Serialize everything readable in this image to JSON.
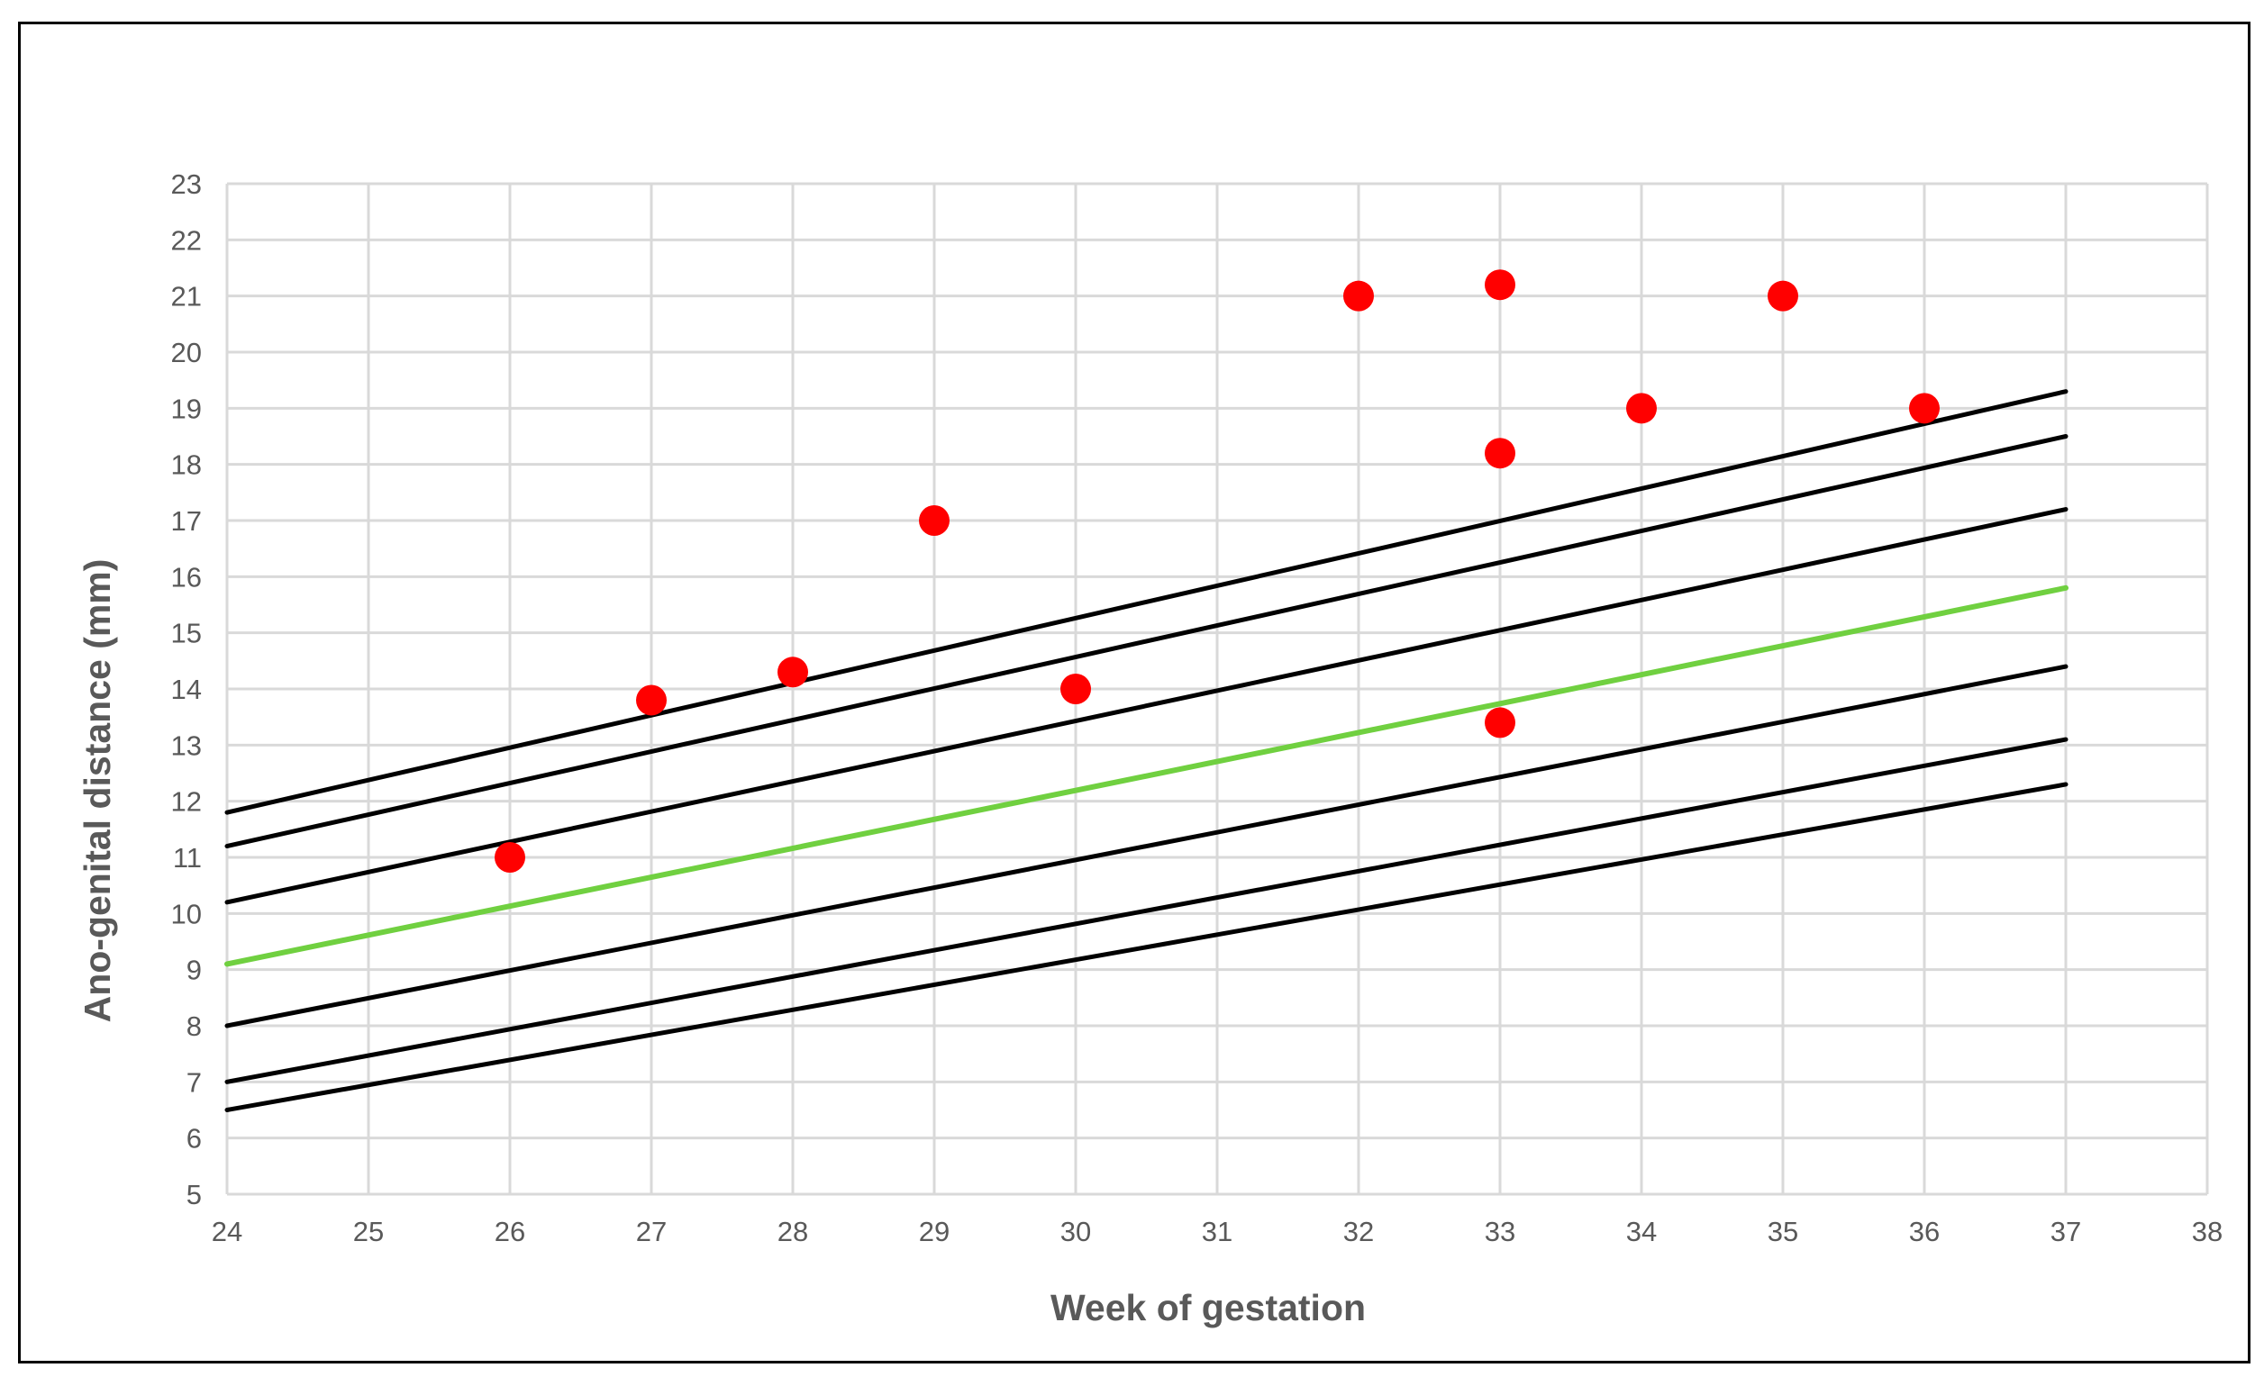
{
  "chart_data": {
    "type": "scatter",
    "title": "",
    "xlabel": "Week of gestation",
    "ylabel": "Ano-genital distance (mm)",
    "xlim": [
      24,
      38
    ],
    "ylim": [
      5,
      23
    ],
    "xticks": [
      24,
      25,
      26,
      27,
      28,
      29,
      30,
      31,
      32,
      33,
      34,
      35,
      36,
      37,
      38
    ],
    "yticks": [
      5,
      6,
      7,
      8,
      9,
      10,
      11,
      12,
      13,
      14,
      15,
      16,
      17,
      18,
      19,
      20,
      21,
      22,
      23
    ],
    "grid": true,
    "legend": "none",
    "colors": {
      "points": "#ff0000",
      "median": "#70d040",
      "percentiles": "#000000",
      "grid": "#d9d9d9",
      "text": "#595959"
    },
    "points": [
      {
        "x": 26,
        "y": 11.0
      },
      {
        "x": 27,
        "y": 13.8
      },
      {
        "x": 28,
        "y": 14.3
      },
      {
        "x": 29,
        "y": 17.0
      },
      {
        "x": 30,
        "y": 14.0
      },
      {
        "x": 32,
        "y": 21.0
      },
      {
        "x": 33,
        "y": 21.2
      },
      {
        "x": 33,
        "y": 18.2
      },
      {
        "x": 33,
        "y": 13.4
      },
      {
        "x": 34,
        "y": 19.0
      },
      {
        "x": 35,
        "y": 21.0
      },
      {
        "x": 36,
        "y": 19.0
      }
    ],
    "lines": [
      {
        "role": "percentile",
        "color": "#000000",
        "x": [
          24,
          37
        ],
        "y": [
          11.8,
          19.3
        ]
      },
      {
        "role": "percentile",
        "color": "#000000",
        "x": [
          24,
          37
        ],
        "y": [
          11.2,
          18.5
        ]
      },
      {
        "role": "percentile",
        "color": "#000000",
        "x": [
          24,
          37
        ],
        "y": [
          10.2,
          17.2
        ]
      },
      {
        "role": "median",
        "color": "#70d040",
        "x": [
          24,
          37
        ],
        "y": [
          9.1,
          15.8
        ]
      },
      {
        "role": "percentile",
        "color": "#000000",
        "x": [
          24,
          37
        ],
        "y": [
          8.0,
          14.4
        ]
      },
      {
        "role": "percentile",
        "color": "#000000",
        "x": [
          24,
          37
        ],
        "y": [
          7.0,
          13.1
        ]
      },
      {
        "role": "percentile",
        "color": "#000000",
        "x": [
          24,
          37
        ],
        "y": [
          6.5,
          12.3
        ]
      }
    ]
  }
}
